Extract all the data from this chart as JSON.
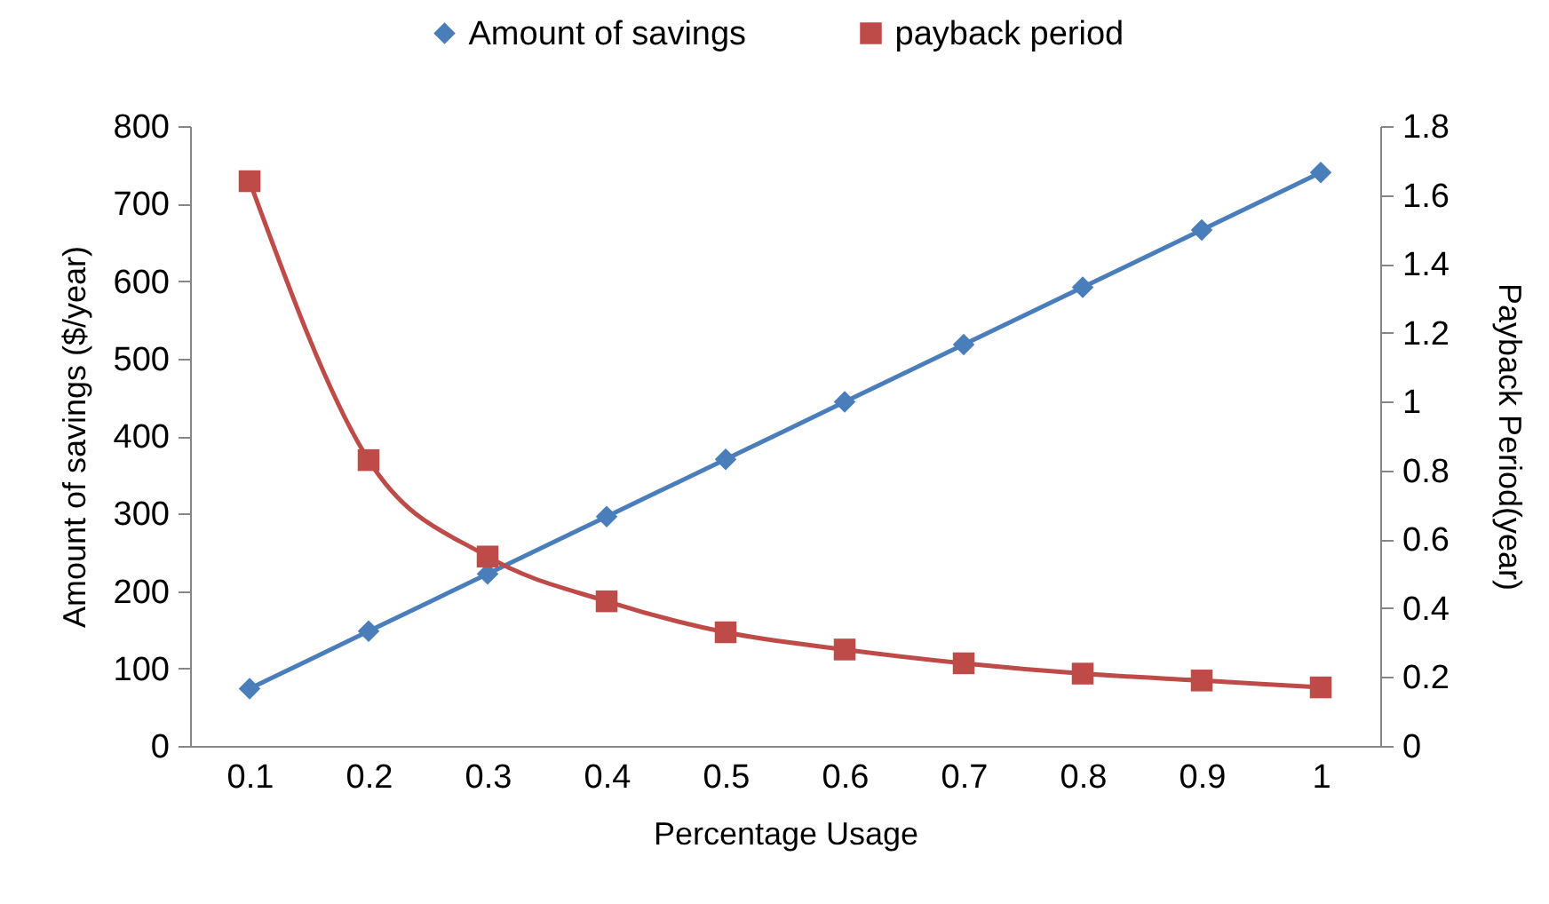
{
  "chart_data": {
    "type": "line",
    "categories": [
      "0.1",
      "0.2",
      "0.3",
      "0.4",
      "0.5",
      "0.6",
      "0.7",
      "0.8",
      "0.9",
      "1"
    ],
    "xlabel": "Percentage Usage",
    "ylabel": "Amount of savings ($/year)",
    "y2label": "Payback Period(year)",
    "ylim": [
      0,
      800
    ],
    "yticks": [
      0,
      100,
      200,
      300,
      400,
      500,
      600,
      700,
      800
    ],
    "y2lim": [
      0,
      1.8
    ],
    "y2ticks": [
      0,
      0.2,
      0.4,
      0.6,
      0.8,
      1,
      1.2,
      1.4,
      1.6,
      1.8
    ],
    "series": [
      {
        "name": "Amount of savings",
        "color": "#4a7ebb",
        "marker": "diamond",
        "values": [
          74,
          148,
          222,
          296,
          370,
          444,
          518,
          592,
          666,
          740
        ]
      },
      {
        "name": "payback period",
        "color": "#be4b48",
        "marker": "square",
        "axis": "y2",
        "values": [
          1.64,
          0.83,
          0.55,
          0.42,
          0.33,
          0.28,
          0.24,
          0.21,
          0.19,
          0.17
        ]
      }
    ],
    "legend": "top",
    "grid": false,
    "line_style": "solid"
  }
}
